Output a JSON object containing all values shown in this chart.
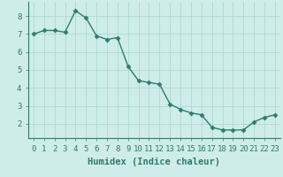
{
  "x": [
    0,
    1,
    2,
    3,
    4,
    5,
    6,
    7,
    8,
    9,
    10,
    11,
    12,
    13,
    14,
    15,
    16,
    17,
    18,
    19,
    20,
    21,
    22,
    23
  ],
  "y": [
    7.0,
    7.2,
    7.2,
    7.1,
    8.3,
    7.9,
    6.9,
    6.7,
    6.8,
    5.2,
    4.4,
    4.3,
    4.2,
    3.1,
    2.8,
    2.6,
    2.5,
    1.8,
    1.65,
    1.65,
    1.65,
    2.1,
    2.35,
    2.5
  ],
  "line_color": "#2d7d6e",
  "marker": "D",
  "marker_size": 2.5,
  "bg_color": "#ceecea",
  "grid_color": "#aed8d4",
  "xlabel": "Humidex (Indice chaleur)",
  "xlim": [
    -0.5,
    23.5
  ],
  "ylim": [
    1.2,
    8.8
  ],
  "yticks": [
    2,
    3,
    4,
    5,
    6,
    7,
    8
  ],
  "xticks": [
    0,
    1,
    2,
    3,
    4,
    5,
    6,
    7,
    8,
    9,
    10,
    11,
    12,
    13,
    14,
    15,
    16,
    17,
    18,
    19,
    20,
    21,
    22,
    23
  ],
  "tick_label_size": 6.5,
  "xlabel_size": 7.5,
  "line_width": 1.0
}
